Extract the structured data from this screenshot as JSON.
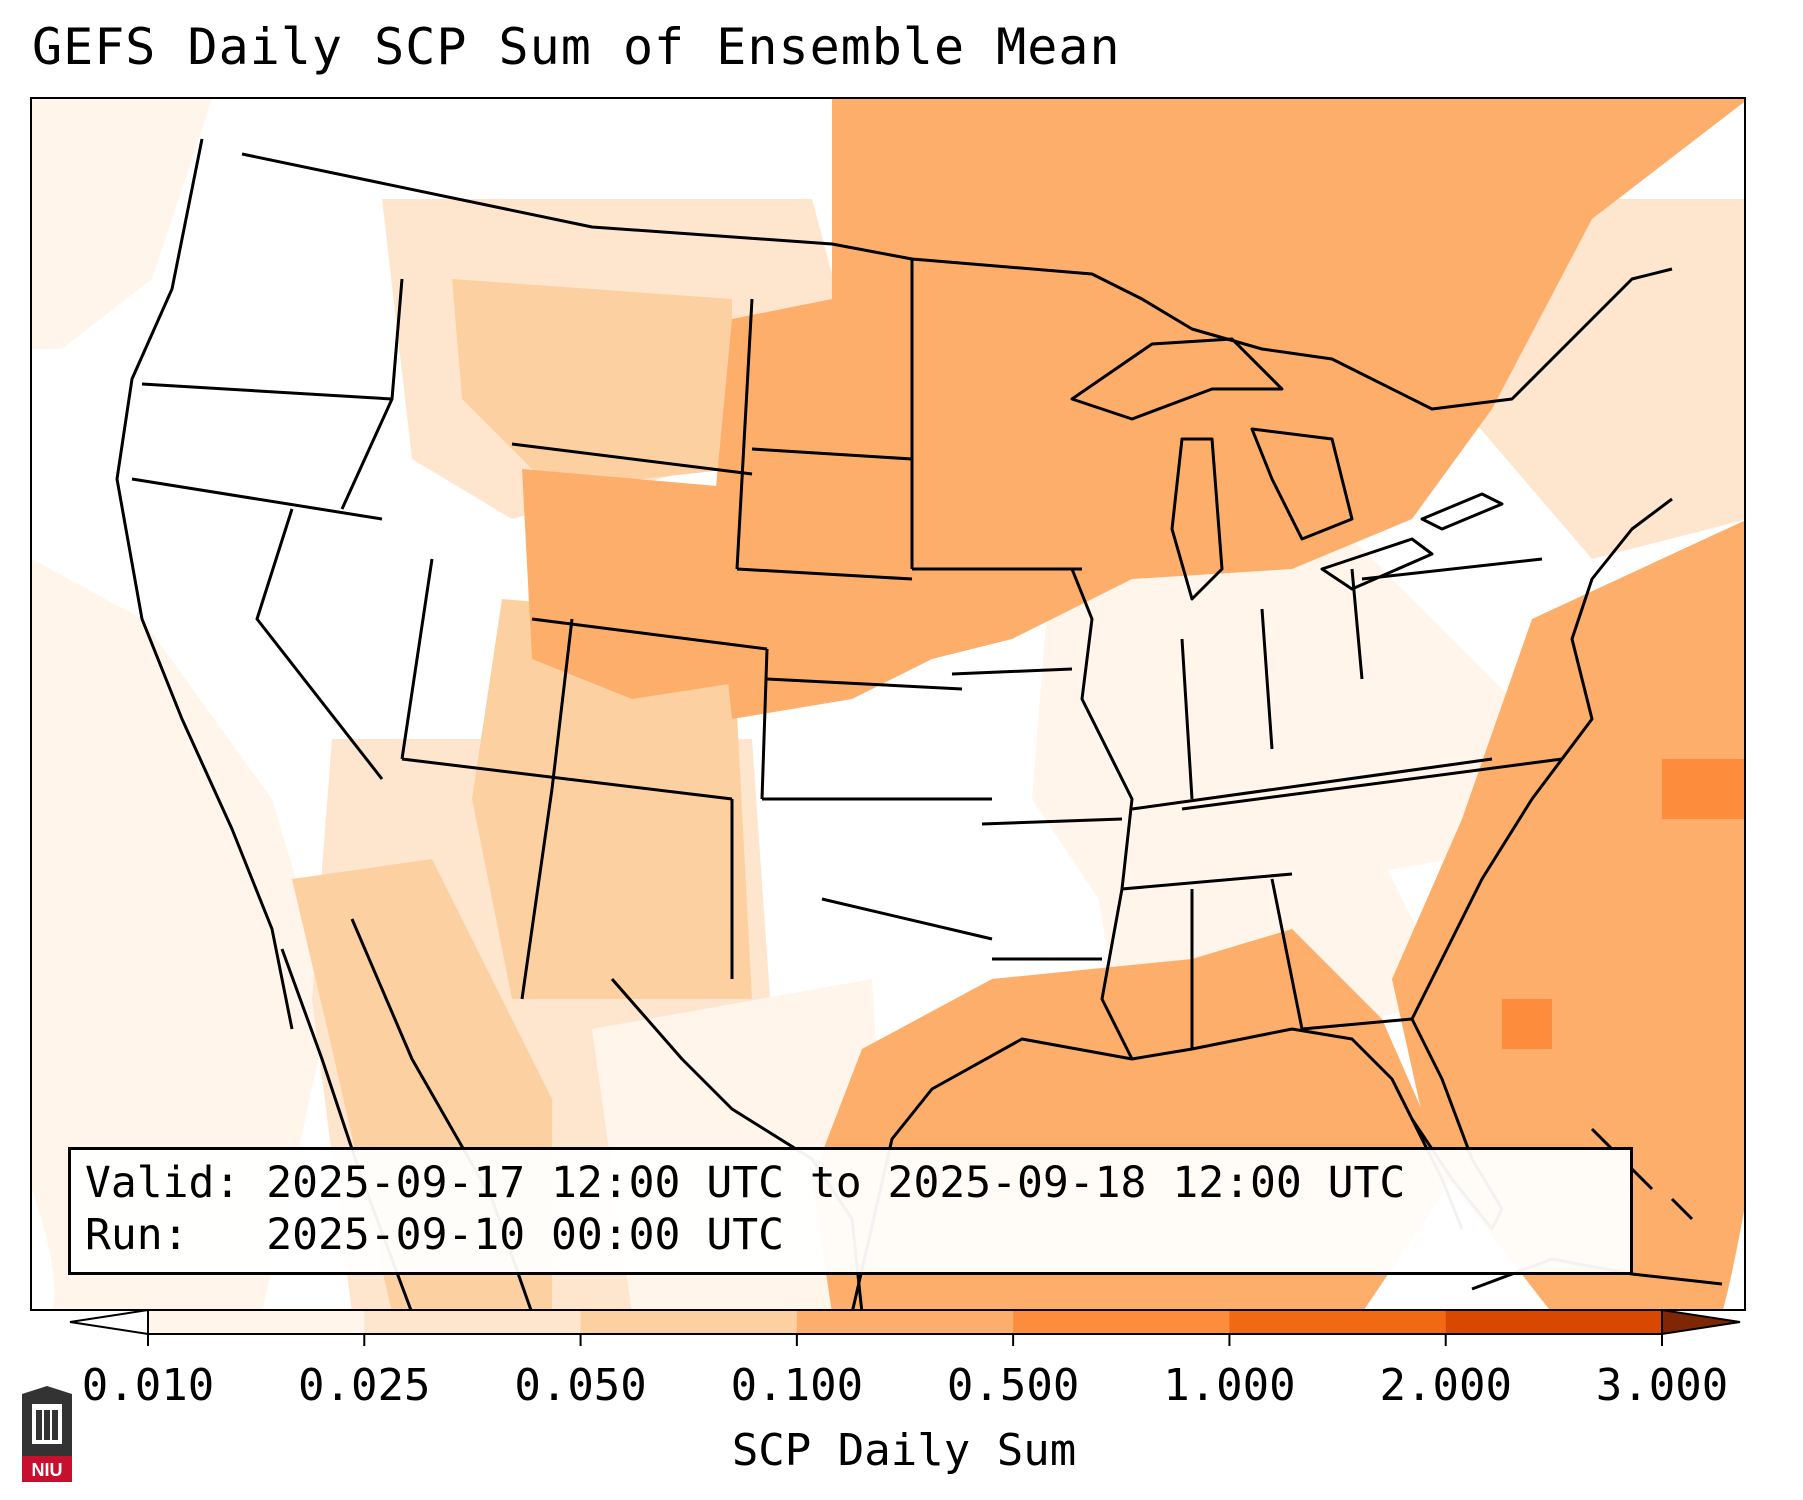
{
  "title": "GEFS Daily SCP Sum of Ensemble Mean",
  "info": {
    "valid_label": "Valid:",
    "valid_text": "2025-09-17 12:00 UTC to 2025-09-18 12:00 UTC",
    "run_label": "Run:",
    "run_text": "2025-09-10 00:00 UTC"
  },
  "colorbar": {
    "label": "SCP Daily Sum",
    "ticks": [
      "0.010",
      "0.025",
      "0.050",
      "0.100",
      "0.500",
      "1.000",
      "2.000",
      "3.000"
    ],
    "bin_colors": [
      "#fff5eb",
      "#fee6ce",
      "#fdd0a2",
      "#fdae6b",
      "#fd8d3c",
      "#f16913",
      "#d94801"
    ],
    "extend": "both"
  },
  "map": {
    "domain": "Contiguous United States, southern Canada, northern Mexico, Gulf of Mexico, western Atlantic",
    "projection": "Lambert Conformal",
    "field": "SCP daily sum, GEFS ensemble mean",
    "regions": [
      {
        "area": "Upper Midwest and Great Lakes",
        "bin": "0.100 to 0.500"
      },
      {
        "area": "Central High Plains and Nebraska",
        "bin": "0.100 to 0.500"
      },
      {
        "area": "Gulf of Mexico",
        "bin": "0.100 to 0.500"
      },
      {
        "area": "Western Atlantic",
        "bin": "0.100 to 0.500"
      },
      {
        "area": "Northern Plains and Intermountain West",
        "bin": "0.010 to 0.100"
      },
      {
        "area": "Southern Rockies and Southwest",
        "bin": "0.010 to 0.100"
      },
      {
        "area": "Pacific Northwest, California, Great Basin, Texas, Southeast interior",
        "bin": "below 0.010"
      },
      {
        "area": "Offshore southeast of Cape Hatteras and near Florida",
        "bin": "0.500 to 1.000"
      }
    ]
  },
  "logo": {
    "text": "NIU",
    "accent": "#c8102e"
  }
}
